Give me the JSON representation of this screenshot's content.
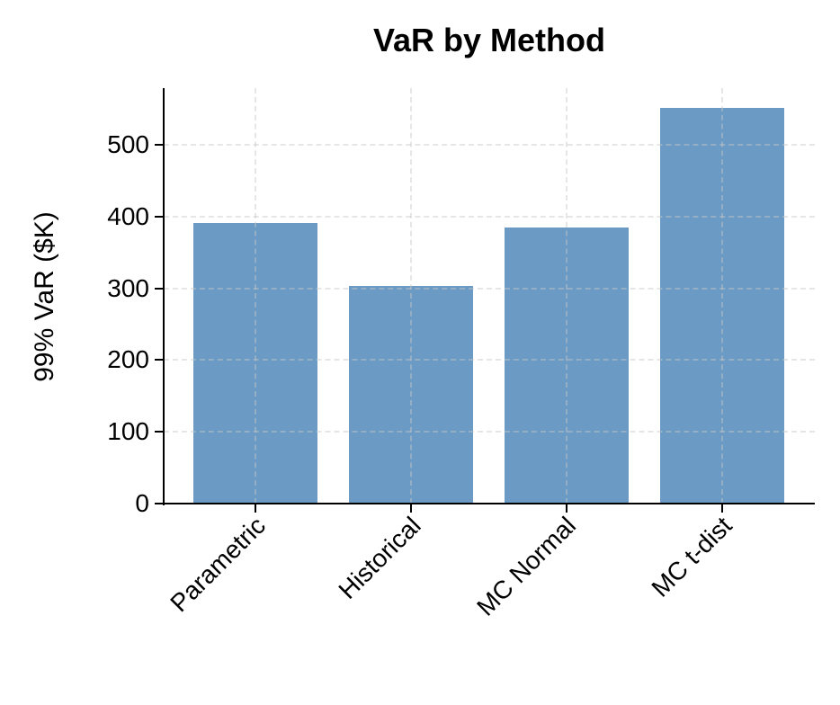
{
  "chart_data": {
    "type": "bar",
    "title": "VaR by Method",
    "xlabel": "",
    "ylabel": "99% VaR ($K)",
    "categories": [
      "Parametric",
      "Historical",
      "MC Normal",
      "MC t-dist"
    ],
    "values": [
      391,
      303,
      385,
      551
    ],
    "ylim": [
      0,
      580
    ],
    "yticks": [
      0,
      100,
      200,
      300,
      400,
      500
    ],
    "grid": true,
    "bar_color": "#6b9ac4",
    "legend": null
  }
}
